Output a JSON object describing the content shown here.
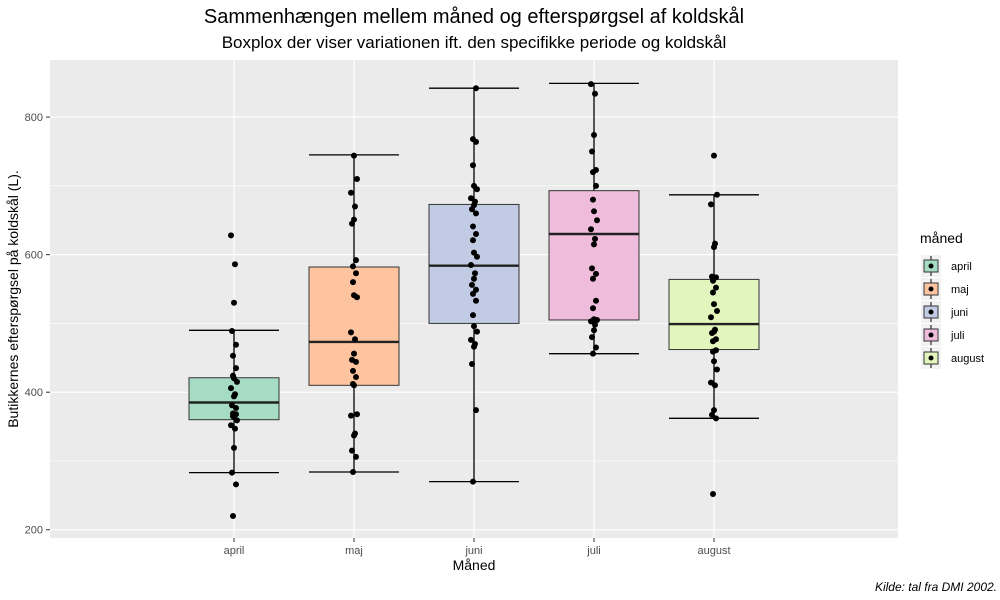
{
  "chart_data": {
    "type": "boxplot",
    "title": "Sammenhængen mellem måned og efterspørgsel af koldskål",
    "subtitle": "Boxplox der viser variationen ift. den specifikke periode og koldskål",
    "xlabel": "Måned",
    "ylabel": "Butikkernes efterspørgsel på koldskål (L).",
    "caption": "Kilde: tal fra DMI 2002.",
    "ylim": [
      188,
      883
    ],
    "yticks": [
      200,
      400,
      600,
      800
    ],
    "categories": [
      "april",
      "maj",
      "juni",
      "juli",
      "august"
    ],
    "legend": {
      "title": "måned",
      "position": "right"
    },
    "grid": true,
    "series": [
      {
        "name": "april",
        "color": "#a6dcc4",
        "whisker_low": 283,
        "q1": 360,
        "median": 385,
        "q3": 421,
        "whisker_high": 490,
        "points": [
          220,
          266,
          283,
          319,
          347,
          352,
          359,
          364,
          365,
          368,
          369,
          377,
          381,
          394,
          397,
          406,
          415,
          420,
          424,
          435,
          453,
          469,
          489,
          530,
          586,
          628
        ]
      },
      {
        "name": "maj",
        "color": "#fdc49f",
        "whisker_low": 284,
        "q1": 410,
        "median": 473,
        "q3": 582,
        "whisker_high": 745,
        "points": [
          284,
          306,
          315,
          337,
          340,
          366,
          368,
          410,
          412,
          422,
          431,
          444,
          447,
          456,
          477,
          487,
          538,
          541,
          560,
          573,
          583,
          592,
          645,
          651,
          670,
          690,
          710,
          744
        ]
      },
      {
        "name": "juni",
        "color": "#c1cbe3",
        "whisker_low": 270,
        "q1": 500,
        "median": 584,
        "q3": 673,
        "whisker_high": 842,
        "points": [
          270,
          374,
          441,
          466,
          470,
          476,
          488,
          496,
          512,
          533,
          543,
          549,
          556,
          565,
          573,
          585,
          597,
          603,
          621,
          630,
          641,
          660,
          666,
          672,
          677,
          682,
          695,
          700,
          730,
          764,
          768,
          842
        ]
      },
      {
        "name": "juli",
        "color": "#efbcdc",
        "whisker_low": 456,
        "q1": 505,
        "median": 630,
        "q3": 693,
        "whisker_high": 849,
        "points": [
          456,
          465,
          480,
          490,
          498,
          503,
          505,
          506,
          522,
          533,
          565,
          572,
          580,
          615,
          623,
          637,
          650,
          663,
          680,
          700,
          720,
          723,
          750,
          774,
          834,
          848
        ]
      },
      {
        "name": "august",
        "color": "#e1f5bd",
        "whisker_low": 362,
        "q1": 462,
        "median": 499,
        "q3": 564,
        "whisker_high": 687,
        "points": [
          252,
          362,
          367,
          374,
          410,
          414,
          433,
          445,
          459,
          461,
          474,
          477,
          486,
          488,
          491,
          509,
          518,
          528,
          545,
          552,
          562,
          567,
          568,
          611,
          616,
          673,
          687,
          744
        ]
      }
    ]
  }
}
